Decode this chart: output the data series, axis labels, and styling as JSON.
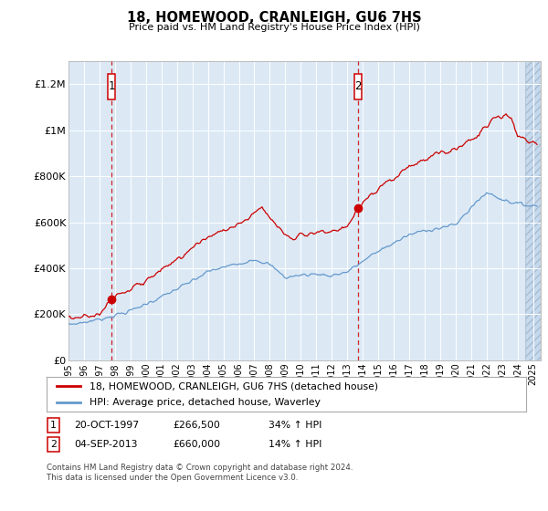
{
  "title": "18, HOMEWOOD, CRANLEIGH, GU6 7HS",
  "subtitle": "Price paid vs. HM Land Registry's House Price Index (HPI)",
  "ylabel_ticks": [
    "£0",
    "£200K",
    "£400K",
    "£600K",
    "£800K",
    "£1M",
    "£1.2M"
  ],
  "ytick_values": [
    0,
    200000,
    400000,
    600000,
    800000,
    1000000,
    1200000
  ],
  "ylim": [
    0,
    1300000
  ],
  "xlim_start": 1995.0,
  "xlim_end": 2025.5,
  "background_color": "#dce9f5",
  "sale1_x": 1997.79,
  "sale1_y": 266500,
  "sale2_x": 2013.67,
  "sale2_y": 660000,
  "sale1_label": "1",
  "sale2_label": "2",
  "sale1_date": "20-OCT-1997",
  "sale1_price": "£266,500",
  "sale1_hpi": "34% ↑ HPI",
  "sale2_date": "04-SEP-2013",
  "sale2_price": "£660,000",
  "sale2_hpi": "14% ↑ HPI",
  "legend_line1": "18, HOMEWOOD, CRANLEIGH, GU6 7HS (detached house)",
  "legend_line2": "HPI: Average price, detached house, Waverley",
  "footer": "Contains HM Land Registry data © Crown copyright and database right 2024.\nThis data is licensed under the Open Government Licence v3.0.",
  "red_color": "#cc0000",
  "blue_color": "#6699cc"
}
